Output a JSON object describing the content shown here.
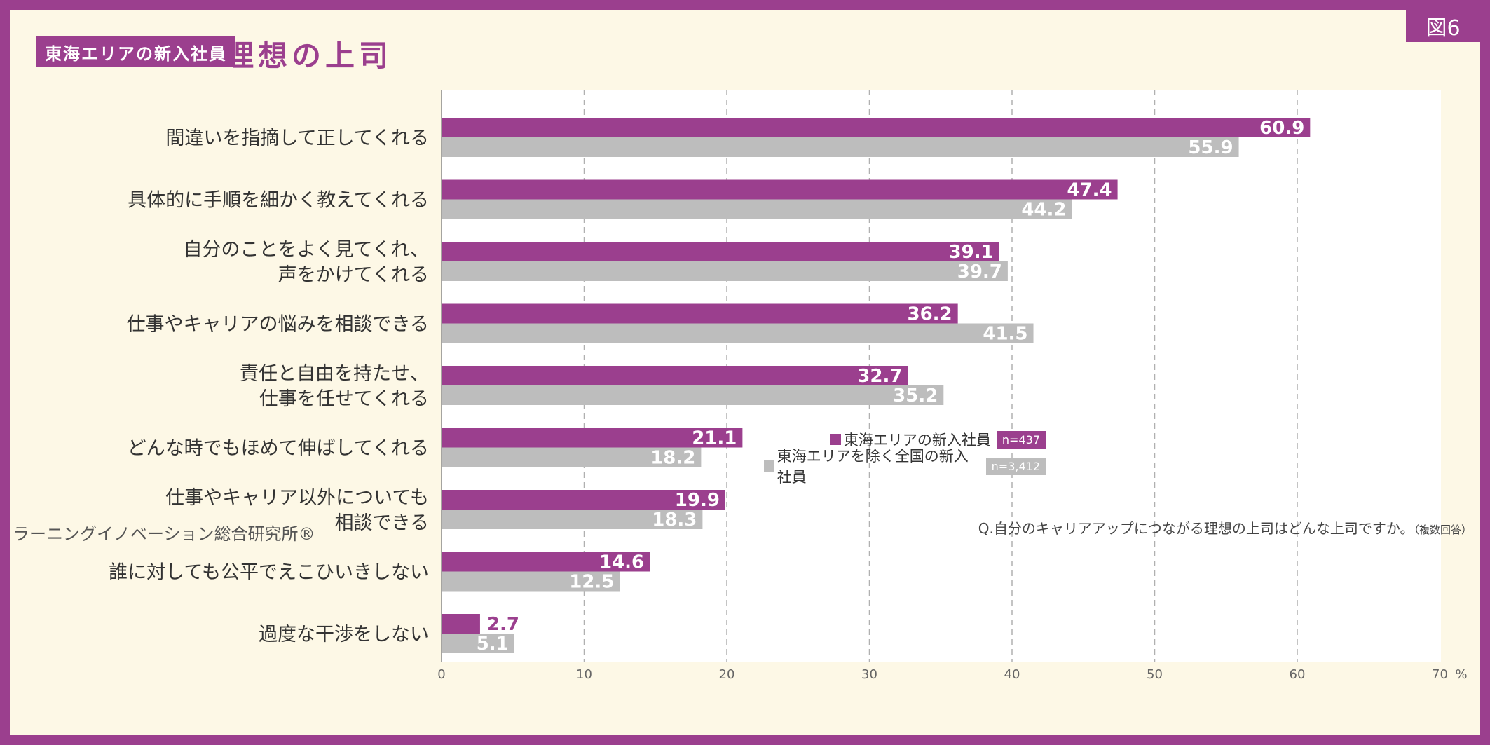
{
  "figure_tag": "図6",
  "title": {
    "badge": "東海エリアの新入社員",
    "main": "理想の上司"
  },
  "legend": [
    {
      "label": "東海エリアの新入社員",
      "n": "n=437",
      "color": "#9b3f8e"
    },
    {
      "label": "東海エリアを除く全国の新入社員",
      "n": "n=3,412",
      "color": "#bdbdbd"
    }
  ],
  "footer": {
    "source": "ラーニングイノベーション総合研究所®",
    "question": "Q.自分のキャリアアップにつながる理想の上司はどんな上司ですか。",
    "question_note": "（複数回答）"
  },
  "chart_data": {
    "type": "bar",
    "orientation": "horizontal",
    "categories": [
      [
        "間違いを指摘して正してくれる"
      ],
      [
        "具体的に手順を細かく教えてくれる"
      ],
      [
        "自分のことをよく見てくれ、",
        "声をかけてくれる"
      ],
      [
        "仕事やキャリアの悩みを相談できる"
      ],
      [
        "責任と自由を持たせ、",
        "仕事を任せてくれる"
      ],
      [
        "どんな時でもほめて伸ばしてくれる"
      ],
      [
        "仕事やキャリア以外についても",
        "相談できる"
      ],
      [
        "誰に対しても公平でえこひいきしない"
      ],
      [
        "過度な干渉をしない"
      ]
    ],
    "series": [
      {
        "name": "東海エリアの新入社員",
        "values": [
          60.9,
          47.4,
          39.1,
          36.2,
          32.7,
          21.1,
          19.9,
          14.6,
          2.7
        ],
        "color": "#9b3f8e"
      },
      {
        "name": "東海エリアを除く全国の新入社員",
        "values": [
          55.9,
          44.2,
          39.7,
          41.5,
          35.2,
          18.2,
          18.3,
          12.5,
          5.1
        ],
        "color": "#bdbdbd"
      }
    ],
    "xlim": [
      0,
      70
    ],
    "xticks": [
      "0",
      "10",
      "20",
      "30",
      "40",
      "50",
      "60"
    ],
    "xtick_last": "70",
    "xunit": "%",
    "grid": true
  }
}
